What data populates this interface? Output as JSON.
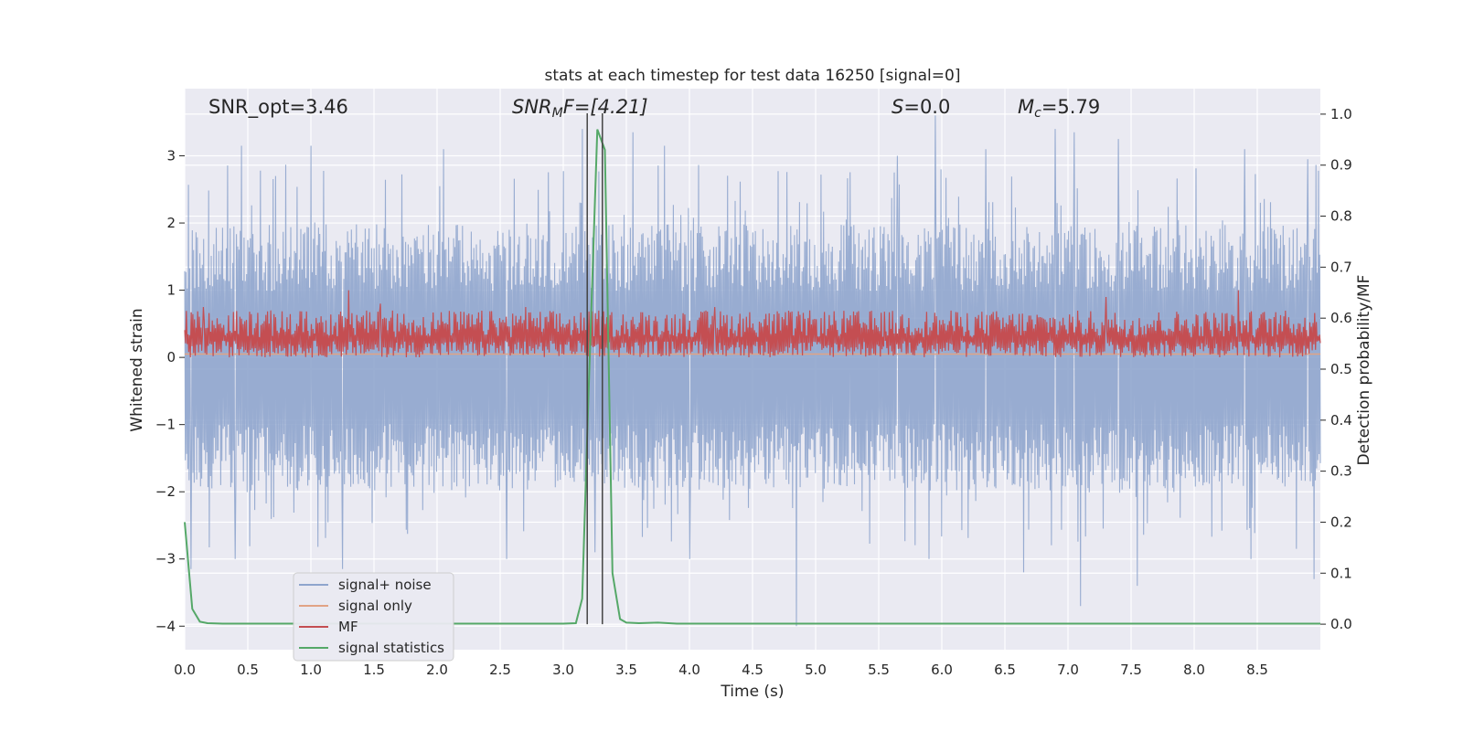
{
  "chart_data": {
    "type": "line",
    "title": "stats at each timestep for test data 16250 [signal=0]",
    "xlabel": "Time (s)",
    "ylabel": "Whitened strain",
    "y2label": "Detection probability/MF",
    "xlim": [
      0.0,
      9.0
    ],
    "ylim": [
      -4.35,
      4.0
    ],
    "y2lim": [
      -0.05,
      1.05
    ],
    "xticks": [
      "0.0",
      "0.5",
      "1.0",
      "1.5",
      "2.0",
      "2.5",
      "3.0",
      "3.5",
      "4.0",
      "4.5",
      "5.0",
      "5.5",
      "6.0",
      "6.5",
      "7.0",
      "7.5",
      "8.0",
      "8.5"
    ],
    "yticks": [
      "-4",
      "-3",
      "-2",
      "-1",
      "0",
      "1",
      "2",
      "3"
    ],
    "y2ticks": [
      "0.0",
      "0.1",
      "0.2",
      "0.3",
      "0.4",
      "0.5",
      "0.6",
      "0.7",
      "0.8",
      "0.9",
      "1.0"
    ],
    "grid": true,
    "legend_position": "lower-left",
    "annotations": {
      "snr_opt": "SNR_opt=3.46",
      "snr_mf_sym": "SNR",
      "snr_mf_sub": "M",
      "snr_mf_rest": "F=[4.21]",
      "s_sym": "S",
      "s_rest": "=0.0",
      "mc_sym": "M",
      "mc_sub": "c",
      "mc_rest": "=5.79"
    },
    "vertical_lines_x": [
      3.19,
      3.31
    ],
    "series": [
      {
        "name": "signal+ noise",
        "color": "#8fa5cd",
        "axis": "left",
        "description_level": "whitened strain noise, mostly within [-1.7, 1.8], peaks near 3.6 and -4.0",
        "envelope_top": 1.8,
        "envelope_bottom": -1.7,
        "peaks": [
          [
            0.05,
            3.1
          ],
          [
            0.45,
            3.15
          ],
          [
            1.0,
            3.15
          ],
          [
            2.05,
            3.1
          ],
          [
            3.15,
            3.4
          ],
          [
            3.55,
            3.35
          ],
          [
            3.8,
            3.15
          ],
          [
            5.65,
            3.0
          ],
          [
            5.95,
            3.6
          ],
          [
            6.35,
            3.1
          ],
          [
            6.9,
            3.4
          ],
          [
            7.05,
            3.35
          ],
          [
            7.4,
            3.25
          ],
          [
            8.4,
            3.1
          ],
          [
            8.9,
            2.95
          ]
        ],
        "troughs": [
          [
            0.05,
            -3.15
          ],
          [
            0.4,
            -3.0
          ],
          [
            1.25,
            -3.15
          ],
          [
            2.55,
            -3.0
          ],
          [
            3.25,
            -2.9
          ],
          [
            4.0,
            -3.0
          ],
          [
            4.85,
            -4.0
          ],
          [
            5.9,
            -3.0
          ],
          [
            6.65,
            -3.2
          ],
          [
            7.1,
            -3.7
          ],
          [
            7.55,
            -3.4
          ],
          [
            8.45,
            -3.0
          ],
          [
            8.95,
            -3.3
          ]
        ]
      },
      {
        "name": "signal only",
        "color": "#e1a385",
        "axis": "left",
        "x": [
          0.0,
          9.0
        ],
        "y": [
          0.05,
          0.05
        ]
      },
      {
        "name": "MF",
        "color": "#c44e52",
        "axis": "left",
        "description_level": "matched-filter output fluctuating between 0.0 and 0.75, occasional spikes to 1.0",
        "envelope_top": 0.7,
        "envelope_bottom": 0.0,
        "spikes": [
          [
            0.15,
            0.75
          ],
          [
            1.3,
            1.0
          ],
          [
            1.55,
            0.8
          ],
          [
            2.7,
            0.75
          ],
          [
            4.2,
            0.75
          ],
          [
            7.3,
            0.9
          ],
          [
            8.35,
            1.0
          ]
        ]
      },
      {
        "name": "signal statistics",
        "color": "#55a868",
        "axis": "right",
        "x": [
          0.0,
          0.06,
          0.12,
          0.18,
          0.3,
          0.5,
          1.0,
          2.0,
          3.0,
          3.1,
          3.15,
          3.2,
          3.27,
          3.33,
          3.39,
          3.45,
          3.5,
          3.6,
          3.75,
          3.9,
          4.5,
          6.0,
          8.0,
          9.0
        ],
        "y": [
          0.2,
          0.03,
          0.005,
          0.002,
          0.001,
          0.001,
          0.001,
          0.001,
          0.001,
          0.002,
          0.05,
          0.45,
          0.97,
          0.93,
          0.1,
          0.01,
          0.003,
          0.002,
          0.003,
          0.001,
          0.001,
          0.001,
          0.001,
          0.001
        ]
      }
    ]
  }
}
